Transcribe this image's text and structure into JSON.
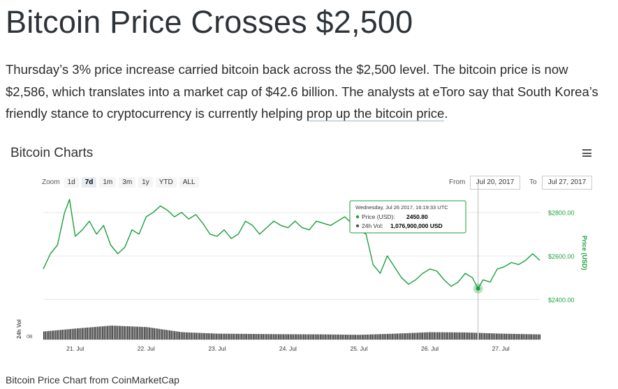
{
  "headline": "Bitcoin Price Crosses $2,500",
  "paragraph": {
    "text": "Thursday’s 3% price increase carried bitcoin back across the $2,500 level. The bitcoin price is now $2,586, which translates into a market cap of $42.6 billion. The analysts at eToro say that South Korea’s friendly stance to cryptocurrency is currently helping ",
    "link_text": "prop up the bitcoin price",
    "tail": "."
  },
  "chart": {
    "title": "Bitcoin Charts",
    "menu_icon": "hamburger-icon",
    "zoom": {
      "label": "Zoom",
      "buttons": [
        "1d",
        "7d",
        "1m",
        "3m",
        "1y",
        "YTD",
        "ALL"
      ],
      "active": "7d"
    },
    "range": {
      "from_label": "From",
      "from_value": "Jul 20, 2017",
      "to_label": "To",
      "to_value": "Jul 27, 2017"
    },
    "tooltip": {
      "date": "Wednesday, Jul 26 2017, 16:19:33 UTC",
      "price_label": "Price (USD):",
      "price_value": "2450.80",
      "vol_label": "24h Vol:",
      "vol_value": "1,076,900,000 USD"
    },
    "colors": {
      "price_line": "#1a9f3c",
      "volume": "#333333",
      "grid": "#e6e6e6",
      "axis_label": "#1a9f3c"
    }
  },
  "chart_data": {
    "type": "line",
    "title": "Bitcoin Charts",
    "x_tick_labels": [
      "21. Jul",
      "22. Jul",
      "23. Jul",
      "24. Jul",
      "25. Jul",
      "26. Jul",
      "27. Jul"
    ],
    "y_tick_labels": [
      "$2400.00",
      "$2600.00",
      "$2800.00"
    ],
    "ylabel": "Price (USD)",
    "ylim": [
      2360,
      2860
    ],
    "series": [
      {
        "name": "Price (USD)",
        "x": [
          20.55,
          20.65,
          20.75,
          20.85,
          20.92,
          21.0,
          21.1,
          21.2,
          21.3,
          21.4,
          21.5,
          21.6,
          21.7,
          21.8,
          21.9,
          22.0,
          22.1,
          22.2,
          22.3,
          22.4,
          22.5,
          22.6,
          22.7,
          22.8,
          22.9,
          23.0,
          23.1,
          23.2,
          23.3,
          23.4,
          23.5,
          23.6,
          23.7,
          23.8,
          23.9,
          24.0,
          24.1,
          24.2,
          24.3,
          24.4,
          24.5,
          24.6,
          24.7,
          24.8,
          24.9,
          25.0,
          25.1,
          25.2,
          25.3,
          25.4,
          25.5,
          25.6,
          25.7,
          25.8,
          25.9,
          26.0,
          26.1,
          26.2,
          26.3,
          26.4,
          26.5,
          26.6,
          26.68,
          26.75,
          26.85,
          26.95,
          27.05,
          27.15,
          27.25,
          27.35,
          27.45,
          27.55
        ],
        "values": [
          2540,
          2610,
          2650,
          2800,
          2860,
          2690,
          2720,
          2760,
          2700,
          2740,
          2650,
          2610,
          2640,
          2720,
          2700,
          2780,
          2800,
          2830,
          2810,
          2780,
          2800,
          2770,
          2790,
          2750,
          2700,
          2690,
          2720,
          2680,
          2700,
          2760,
          2740,
          2700,
          2730,
          2760,
          2740,
          2730,
          2760,
          2730,
          2720,
          2760,
          2750,
          2740,
          2760,
          2780,
          2750,
          2720,
          2700,
          2560,
          2520,
          2600,
          2550,
          2500,
          2470,
          2490,
          2520,
          2540,
          2530,
          2490,
          2460,
          2480,
          2520,
          2500,
          2450,
          2490,
          2480,
          2540,
          2550,
          2570,
          2560,
          2580,
          2610,
          2580
        ]
      },
      {
        "name": "24h Vol",
        "x": [
          20.55,
          21.0,
          21.5,
          22.0,
          22.5,
          23.0,
          23.5,
          24.0,
          24.5,
          25.0,
          25.5,
          26.0,
          26.5,
          27.0,
          27.55
        ],
        "values": [
          0.55,
          0.75,
          0.95,
          0.85,
          0.5,
          0.4,
          0.38,
          0.36,
          0.35,
          0.32,
          0.4,
          0.5,
          0.48,
          0.4,
          0.35
        ]
      }
    ]
  },
  "caption": "Bitcoin Price Chart from CoinMarketCap"
}
